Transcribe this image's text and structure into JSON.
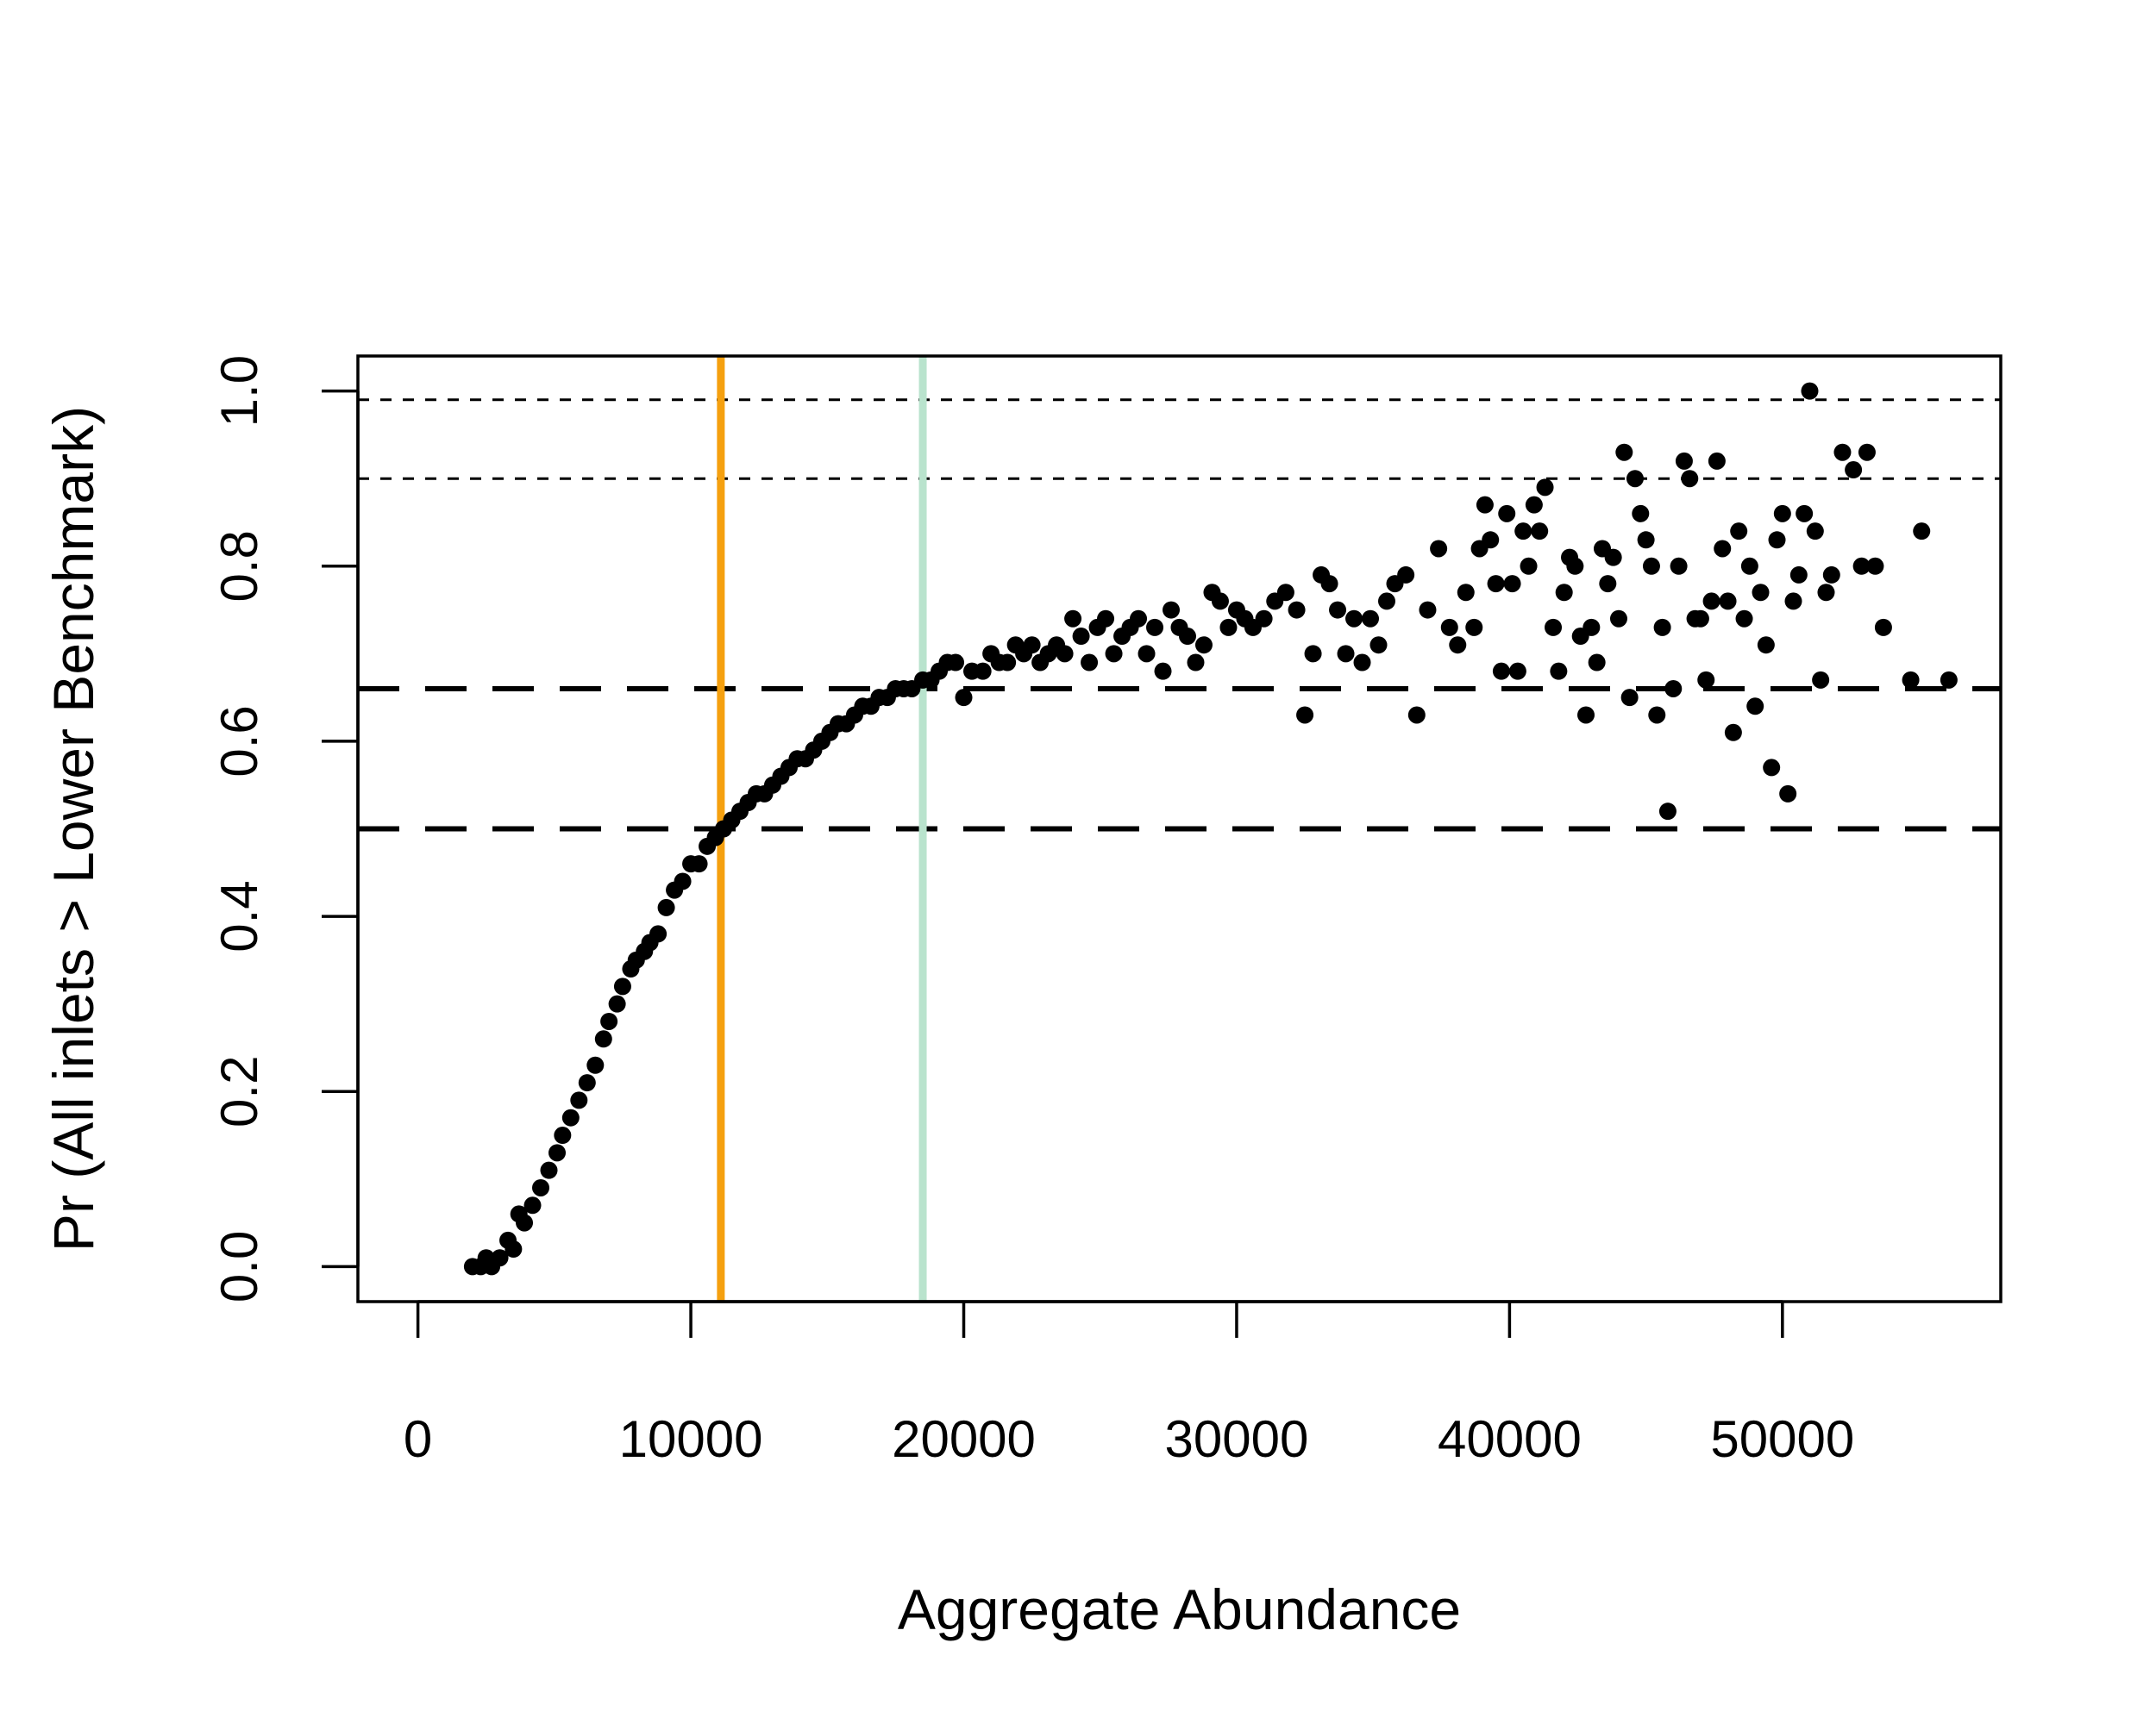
{
  "chart_data": {
    "type": "scatter",
    "title": "",
    "xlabel": "Aggregate Abundance",
    "ylabel": "Pr (All inlets > Lower Benchmark)",
    "xlim": [
      -2200,
      58000
    ],
    "ylim": [
      -0.04,
      1.04
    ],
    "x_ticks": [
      0,
      10000,
      20000,
      30000,
      40000,
      50000
    ],
    "y_ticks": [
      0.0,
      0.2,
      0.4,
      0.6,
      0.8,
      1.0
    ],
    "x_tick_labels": [
      "0",
      "10000",
      "20000",
      "30000",
      "40000",
      "50000"
    ],
    "y_tick_labels": [
      "0.0",
      "0.2",
      "0.4",
      "0.6",
      "0.8",
      "1.0"
    ],
    "grid": false,
    "point_color": "#000000",
    "reference_lines": {
      "horizontal": [
        {
          "y": 0.5,
          "style": "long-dash"
        },
        {
          "y": 0.66,
          "style": "long-dash"
        },
        {
          "y": 0.9,
          "style": "short-dash"
        },
        {
          "y": 0.99,
          "style": "short-dash"
        }
      ],
      "vertical": [
        {
          "x": 11100,
          "color": "#f5a00f"
        },
        {
          "x": 18500,
          "color": "#b9e3cd"
        }
      ]
    },
    "points": [
      [
        2000,
        0.0
      ],
      [
        2300,
        0.0
      ],
      [
        2500,
        0.01
      ],
      [
        2700,
        0.0
      ],
      [
        3000,
        0.01
      ],
      [
        3300,
        0.03
      ],
      [
        3500,
        0.02
      ],
      [
        3700,
        0.06
      ],
      [
        3900,
        0.05
      ],
      [
        4200,
        0.07
      ],
      [
        4500,
        0.09
      ],
      [
        4800,
        0.11
      ],
      [
        5100,
        0.13
      ],
      [
        5300,
        0.15
      ],
      [
        5600,
        0.17
      ],
      [
        5900,
        0.19
      ],
      [
        6200,
        0.21
      ],
      [
        6500,
        0.23
      ],
      [
        6800,
        0.26
      ],
      [
        7000,
        0.28
      ],
      [
        7300,
        0.3
      ],
      [
        7500,
        0.32
      ],
      [
        7800,
        0.34
      ],
      [
        8000,
        0.35
      ],
      [
        8300,
        0.36
      ],
      [
        8500,
        0.37
      ],
      [
        8800,
        0.38
      ],
      [
        9100,
        0.41
      ],
      [
        9400,
        0.43
      ],
      [
        9700,
        0.44
      ],
      [
        10000,
        0.46
      ],
      [
        10300,
        0.46
      ],
      [
        10600,
        0.48
      ],
      [
        10900,
        0.49
      ],
      [
        11200,
        0.5
      ],
      [
        11500,
        0.51
      ],
      [
        11800,
        0.52
      ],
      [
        12100,
        0.53
      ],
      [
        12400,
        0.54
      ],
      [
        12700,
        0.54
      ],
      [
        13000,
        0.55
      ],
      [
        13300,
        0.56
      ],
      [
        13600,
        0.57
      ],
      [
        13900,
        0.58
      ],
      [
        14200,
        0.58
      ],
      [
        14500,
        0.59
      ],
      [
        14800,
        0.6
      ],
      [
        15100,
        0.61
      ],
      [
        15400,
        0.62
      ],
      [
        15700,
        0.62
      ],
      [
        16000,
        0.63
      ],
      [
        16300,
        0.64
      ],
      [
        16600,
        0.64
      ],
      [
        16900,
        0.65
      ],
      [
        17200,
        0.65
      ],
      [
        17500,
        0.66
      ],
      [
        17800,
        0.66
      ],
      [
        18100,
        0.66
      ],
      [
        18500,
        0.67
      ],
      [
        18800,
        0.67
      ],
      [
        19100,
        0.68
      ],
      [
        19400,
        0.69
      ],
      [
        19700,
        0.69
      ],
      [
        20000,
        0.65
      ],
      [
        20300,
        0.68
      ],
      [
        20700,
        0.68
      ],
      [
        21000,
        0.7
      ],
      [
        21300,
        0.69
      ],
      [
        21600,
        0.69
      ],
      [
        21900,
        0.71
      ],
      [
        22200,
        0.7
      ],
      [
        22500,
        0.71
      ],
      [
        22800,
        0.69
      ],
      [
        23100,
        0.7
      ],
      [
        23400,
        0.71
      ],
      [
        23700,
        0.7
      ],
      [
        24000,
        0.74
      ],
      [
        24300,
        0.72
      ],
      [
        24600,
        0.69
      ],
      [
        24900,
        0.73
      ],
      [
        25200,
        0.74
      ],
      [
        25500,
        0.7
      ],
      [
        25800,
        0.72
      ],
      [
        26100,
        0.73
      ],
      [
        26400,
        0.74
      ],
      [
        26700,
        0.7
      ],
      [
        27000,
        0.73
      ],
      [
        27300,
        0.68
      ],
      [
        27600,
        0.75
      ],
      [
        27900,
        0.73
      ],
      [
        28200,
        0.72
      ],
      [
        28500,
        0.69
      ],
      [
        28800,
        0.71
      ],
      [
        29100,
        0.77
      ],
      [
        29400,
        0.76
      ],
      [
        29700,
        0.73
      ],
      [
        30000,
        0.75
      ],
      [
        30300,
        0.74
      ],
      [
        30600,
        0.73
      ],
      [
        31000,
        0.74
      ],
      [
        31400,
        0.76
      ],
      [
        31800,
        0.77
      ],
      [
        32200,
        0.75
      ],
      [
        32500,
        0.63
      ],
      [
        32800,
        0.7
      ],
      [
        33100,
        0.79
      ],
      [
        33400,
        0.78
      ],
      [
        33700,
        0.75
      ],
      [
        34000,
        0.7
      ],
      [
        34300,
        0.74
      ],
      [
        34600,
        0.69
      ],
      [
        34900,
        0.74
      ],
      [
        35200,
        0.71
      ],
      [
        35500,
        0.76
      ],
      [
        35800,
        0.78
      ],
      [
        36200,
        0.79
      ],
      [
        36600,
        0.63
      ],
      [
        37000,
        0.75
      ],
      [
        37400,
        0.82
      ],
      [
        37800,
        0.73
      ],
      [
        38100,
        0.71
      ],
      [
        38400,
        0.77
      ],
      [
        38700,
        0.73
      ],
      [
        38900,
        0.82
      ],
      [
        39100,
        0.87
      ],
      [
        39300,
        0.83
      ],
      [
        39500,
        0.78
      ],
      [
        39700,
        0.68
      ],
      [
        39900,
        0.86
      ],
      [
        40100,
        0.78
      ],
      [
        40300,
        0.68
      ],
      [
        40500,
        0.84
      ],
      [
        40700,
        0.8
      ],
      [
        40900,
        0.87
      ],
      [
        41100,
        0.84
      ],
      [
        41300,
        0.89
      ],
      [
        41600,
        0.73
      ],
      [
        41800,
        0.68
      ],
      [
        42000,
        0.77
      ],
      [
        42200,
        0.81
      ],
      [
        42400,
        0.8
      ],
      [
        42600,
        0.72
      ],
      [
        42800,
        0.63
      ],
      [
        43000,
        0.73
      ],
      [
        43200,
        0.69
      ],
      [
        43400,
        0.82
      ],
      [
        43600,
        0.78
      ],
      [
        43800,
        0.81
      ],
      [
        44000,
        0.74
      ],
      [
        44200,
        0.93
      ],
      [
        44400,
        0.65
      ],
      [
        44600,
        0.9
      ],
      [
        44800,
        0.86
      ],
      [
        45000,
        0.83
      ],
      [
        45200,
        0.8
      ],
      [
        45400,
        0.63
      ],
      [
        45600,
        0.73
      ],
      [
        45800,
        0.52
      ],
      [
        46000,
        0.66
      ],
      [
        46200,
        0.8
      ],
      [
        46400,
        0.92
      ],
      [
        46600,
        0.9
      ],
      [
        46800,
        0.74
      ],
      [
        47000,
        0.74
      ],
      [
        47200,
        0.67
      ],
      [
        47400,
        0.76
      ],
      [
        47600,
        0.92
      ],
      [
        47800,
        0.82
      ],
      [
        48000,
        0.76
      ],
      [
        48200,
        0.61
      ],
      [
        48400,
        0.84
      ],
      [
        48600,
        0.74
      ],
      [
        48800,
        0.8
      ],
      [
        49000,
        0.64
      ],
      [
        49200,
        0.77
      ],
      [
        49400,
        0.71
      ],
      [
        49600,
        0.57
      ],
      [
        49800,
        0.83
      ],
      [
        50000,
        0.86
      ],
      [
        50200,
        0.54
      ],
      [
        50400,
        0.76
      ],
      [
        50600,
        0.79
      ],
      [
        50800,
        0.86
      ],
      [
        51000,
        1.0
      ],
      [
        51200,
        0.84
      ],
      [
        51400,
        0.67
      ],
      [
        51600,
        0.77
      ],
      [
        51800,
        0.79
      ],
      [
        52200,
        0.93
      ],
      [
        52600,
        0.91
      ],
      [
        52900,
        0.8
      ],
      [
        53100,
        0.93
      ],
      [
        53400,
        0.8
      ],
      [
        53700,
        0.73
      ],
      [
        54700,
        0.67
      ],
      [
        55100,
        0.84
      ],
      [
        56100,
        0.67
      ]
    ]
  }
}
